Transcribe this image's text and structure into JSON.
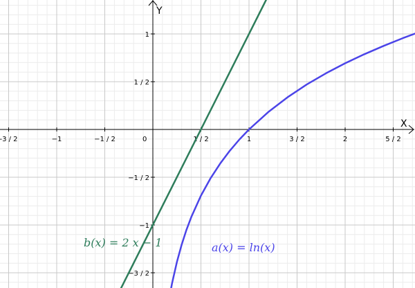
{
  "chart_data": {
    "type": "line",
    "title": "",
    "xlabel": "X",
    "ylabel": "Y",
    "xlim": [
      -1.55,
      2.74
    ],
    "ylim": [
      -1.67,
      1.32
    ],
    "grid": true,
    "x_ticks": [
      {
        "value": -1.5,
        "label": "-3 / 2"
      },
      {
        "value": -1.0,
        "label": "−1"
      },
      {
        "value": -0.5,
        "label": "−1 / 2"
      },
      {
        "value": 0.5,
        "label": "1 / 2"
      },
      {
        "value": 1.0,
        "label": "1"
      },
      {
        "value": 1.5,
        "label": "3 / 2"
      },
      {
        "value": 2.0,
        "label": "2"
      },
      {
        "value": 2.5,
        "label": "5 / 2"
      }
    ],
    "y_ticks": [
      {
        "value": 1.0,
        "label": "1"
      },
      {
        "value": 0.5,
        "label": "1 / 2"
      },
      {
        "value": -0.5,
        "label": "−1 / 2"
      },
      {
        "value": -1.0,
        "label": "−1"
      },
      {
        "value": -1.5,
        "label": "−3 / 2"
      }
    ],
    "origin_label": "0",
    "series": [
      {
        "name": "b(x) = 2 x − 1",
        "color": "#2e7d5b",
        "x": [
          -0.35,
          1.2
        ],
        "y": [
          -1.7,
          1.4
        ]
      },
      {
        "name": "a(x) = ln(x)",
        "color": "#4b44e8",
        "x": [
          0.18,
          0.2,
          0.25,
          0.3,
          0.35,
          0.4,
          0.5,
          0.6,
          0.7,
          0.8,
          0.9,
          1.0,
          1.2,
          1.4,
          1.6,
          1.8,
          2.0,
          2.2,
          2.4,
          2.6,
          2.74
        ],
        "y": [
          -1.715,
          -1.609,
          -1.386,
          -1.204,
          -1.05,
          -0.916,
          -0.693,
          -0.511,
          -0.357,
          -0.223,
          -0.105,
          0.0,
          0.182,
          0.336,
          0.47,
          0.588,
          0.693,
          0.788,
          0.875,
          0.956,
          1.008
        ]
      }
    ]
  }
}
